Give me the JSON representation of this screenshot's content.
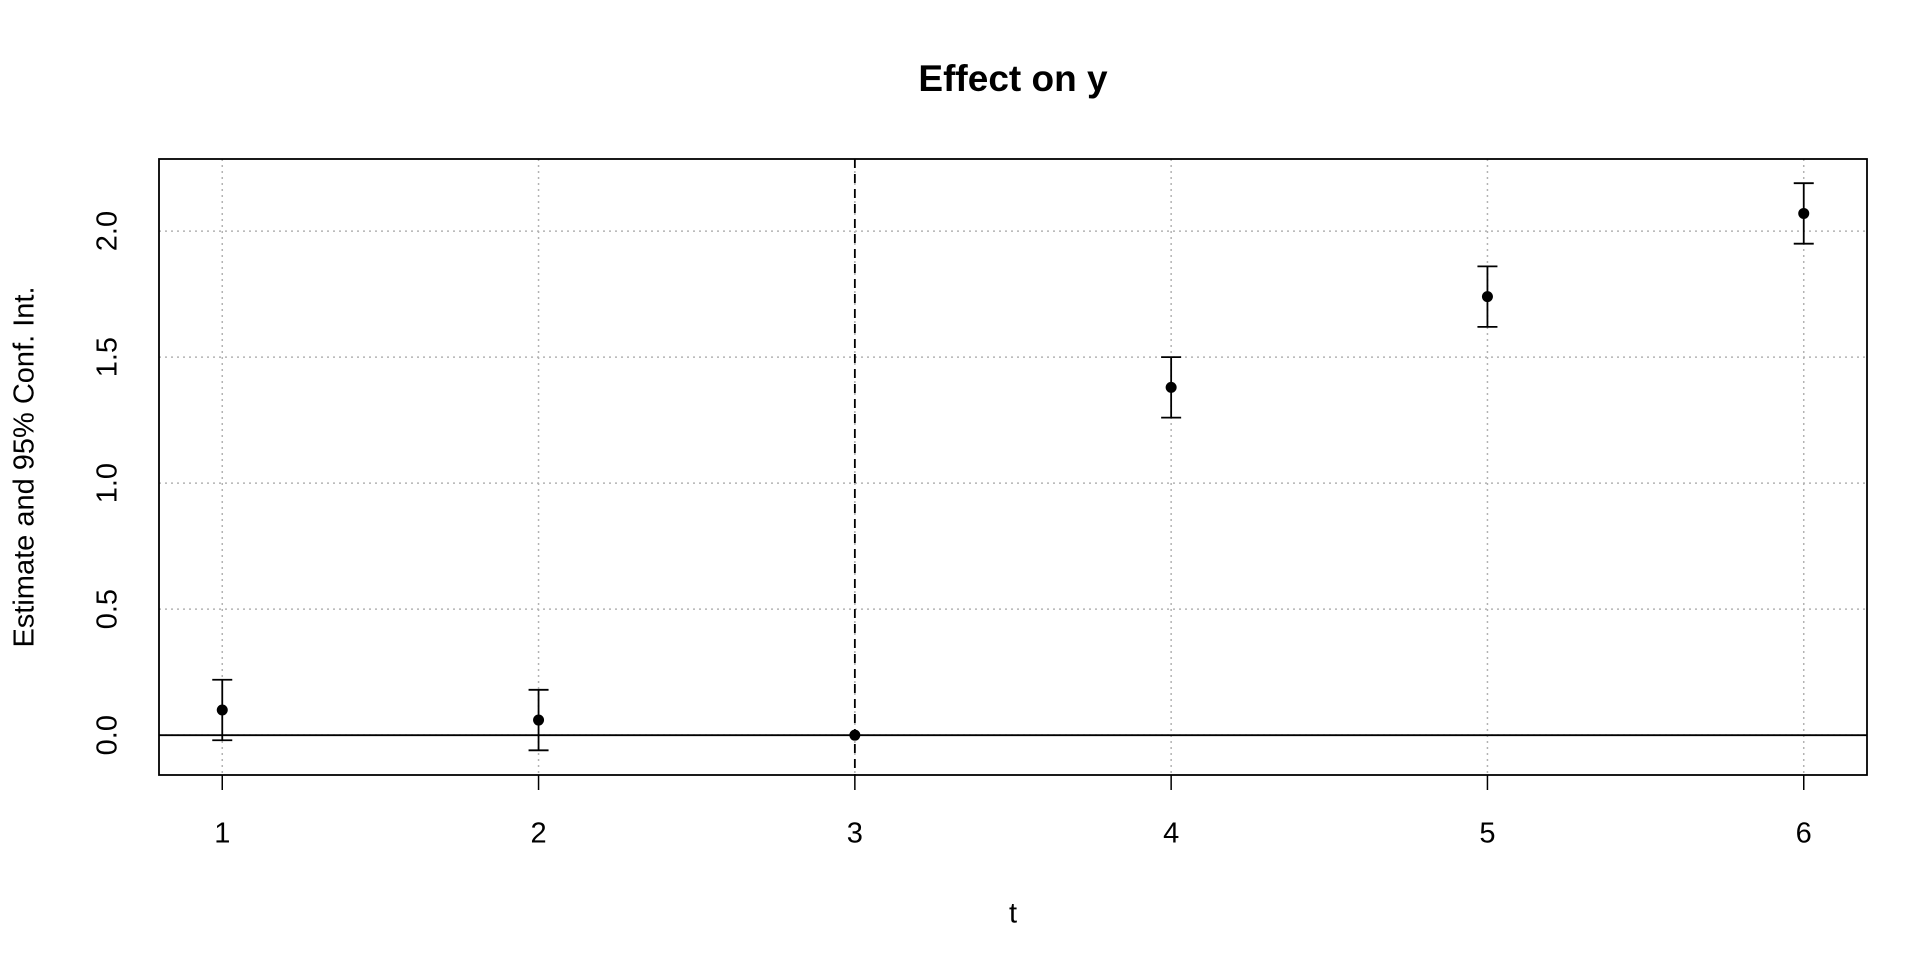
{
  "chart_data": {
    "type": "errorbar",
    "title": "Effect on y",
    "x_label": "t",
    "y_label": "Estimate and 95% Conf. Int.",
    "x": [
      1,
      2,
      3,
      4,
      5,
      6
    ],
    "series": [
      {
        "color": "#000000",
        "values": [
          0.1,
          0.06,
          0,
          1.38,
          1.74,
          2.07
        ],
        "ci_low": [
          -0.02,
          -0.06,
          null,
          1.26,
          1.62,
          1.95
        ],
        "ci_high": [
          0.22,
          0.18,
          null,
          1.5,
          1.86,
          2.19
        ]
      }
    ],
    "xlim": [
      0.8,
      6.2
    ],
    "ylim": [
      -0.158,
      2.286
    ],
    "xticks": [
      1,
      2,
      3,
      4,
      5,
      6
    ],
    "yticks": [
      {
        "value": 0,
        "label": "0.0"
      },
      0.5,
      {
        "value": 1,
        "label": "1.0"
      },
      1.5,
      {
        "value": 2,
        "label": "2.0"
      }
    ],
    "grid": true,
    "reference_x": 3,
    "reference_y": 0
  }
}
